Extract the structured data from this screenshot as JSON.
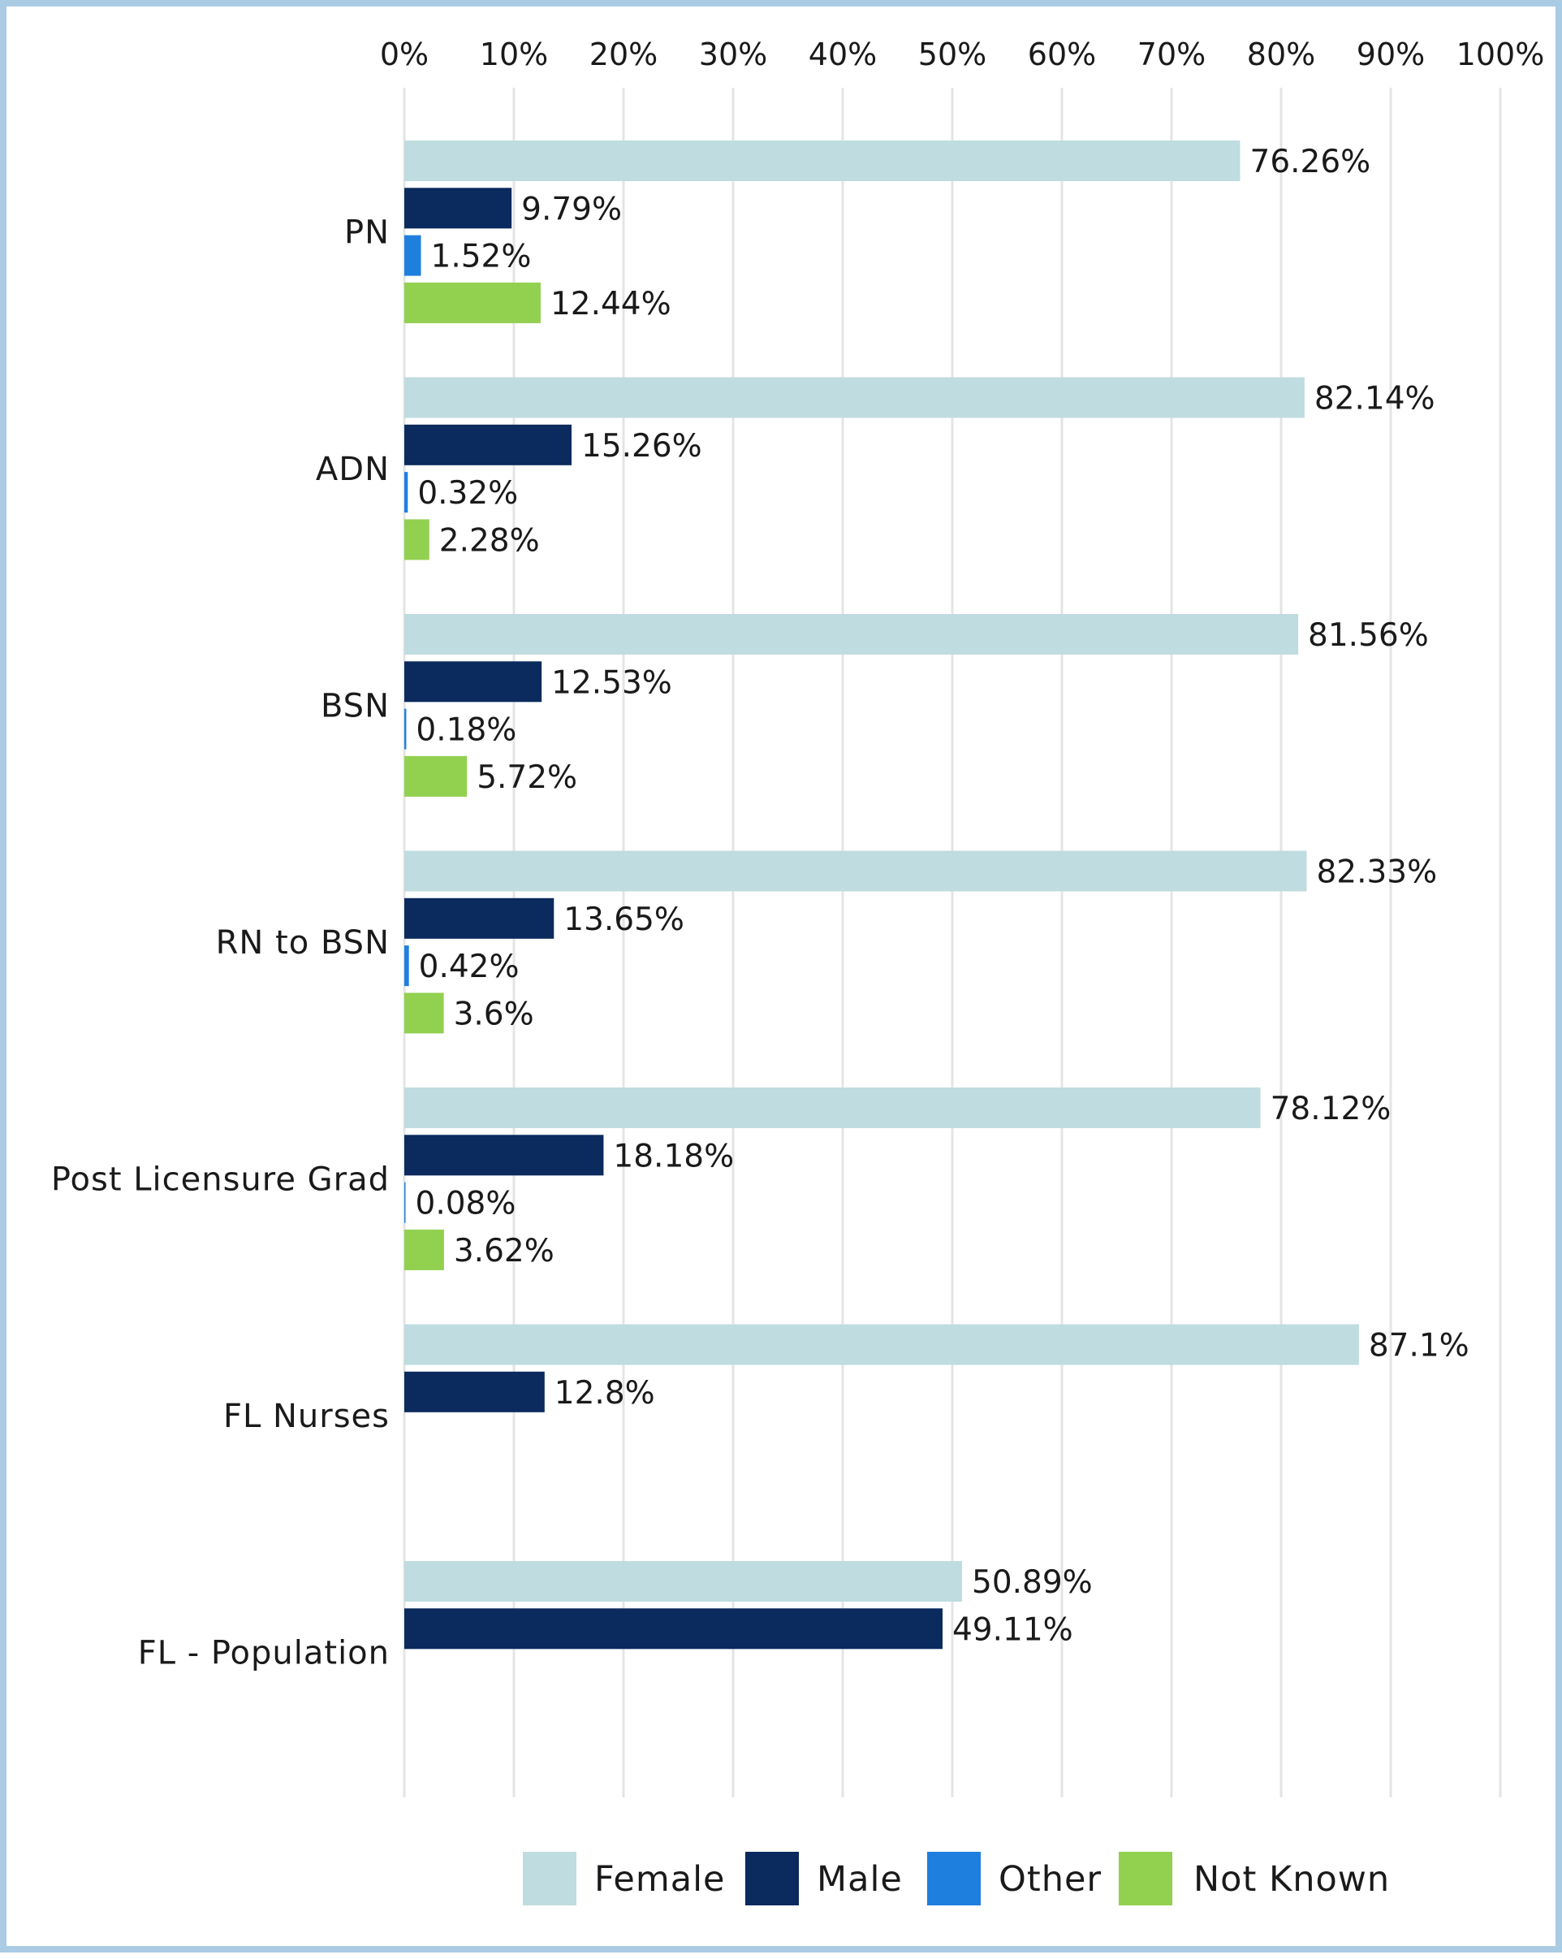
{
  "chart_data": {
    "type": "bar",
    "orientation": "horizontal",
    "title": "",
    "xlabel": "",
    "ylabel": "",
    "xlim": [
      0,
      100
    ],
    "x_ticks": [
      "0%",
      "10%",
      "20%",
      "30%",
      "40%",
      "50%",
      "60%",
      "70%",
      "80%",
      "90%",
      "100%"
    ],
    "x_axis_position": "top",
    "grid": true,
    "legend_position": "bottom",
    "categories": [
      "PN",
      "ADN",
      "BSN",
      "RN to BSN",
      "Post Licensure Grad",
      "FL Nurses",
      "FL - Population"
    ],
    "series": [
      {
        "name": "Female",
        "color": "#bfdce0",
        "values": [
          76.26,
          82.14,
          81.56,
          82.33,
          78.12,
          87.1,
          50.89
        ],
        "labels": [
          "76.26%",
          "82.14%",
          "81.56%",
          "82.33%",
          "78.12%",
          "87.1%",
          "50.89%"
        ]
      },
      {
        "name": "Male",
        "color": "#0b2a5e",
        "values": [
          9.79,
          15.26,
          12.53,
          13.65,
          18.18,
          12.8,
          49.11
        ],
        "labels": [
          "9.79%",
          "15.26%",
          "12.53%",
          "13.65%",
          "18.18%",
          "12.8%",
          "49.11%"
        ]
      },
      {
        "name": "Other",
        "color": "#1f7fde",
        "values": [
          1.52,
          0.32,
          0.18,
          0.42,
          0.08,
          null,
          null
        ],
        "labels": [
          "1.52%",
          "0.32%",
          "0.18%",
          "0.42%",
          "0.08%",
          null,
          null
        ]
      },
      {
        "name": "Not Known",
        "color": "#92d050",
        "values": [
          12.44,
          2.28,
          5.72,
          3.6,
          3.62,
          null,
          null
        ],
        "labels": [
          "12.44%",
          "2.28%",
          "5.72%",
          "3.6%",
          "3.62%",
          null,
          null
        ]
      }
    ],
    "gridline_color": "#e4e4e4"
  }
}
